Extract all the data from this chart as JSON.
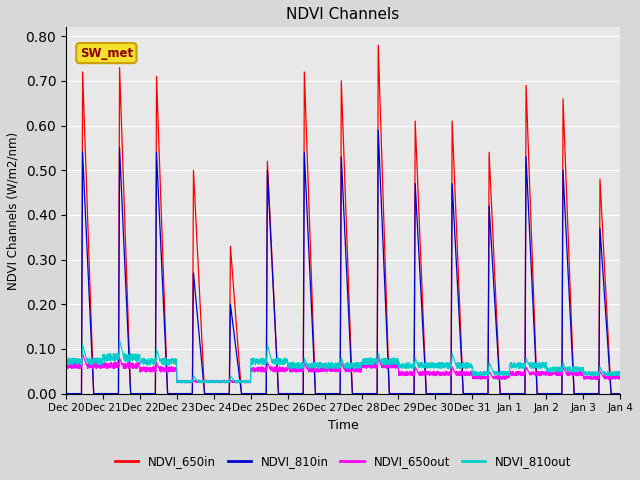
{
  "title": "NDVI Channels",
  "xlabel": "Time",
  "ylabel": "NDVI Channels (W/m2/nm)",
  "ylim": [
    0.0,
    0.82
  ],
  "yticks": [
    0.0,
    0.1,
    0.2,
    0.3,
    0.4,
    0.5,
    0.6,
    0.7,
    0.8
  ],
  "fig_width": 6.4,
  "fig_height": 4.8,
  "background_color": "#d8d8d8",
  "plot_bg_color": "#e8e8e8",
  "annotation_text": "SW_met",
  "annotation_bg": "#f5e030",
  "annotation_border": "#c8a000",
  "annotation_text_color": "#8b0000",
  "colors": {
    "NDVI_650in": "#ff0000",
    "NDVI_810in": "#0000cc",
    "NDVI_650out": "#ff00ff",
    "NDVI_810out": "#00cccc"
  },
  "xtick_labels": [
    "Dec 20",
    "Dec 21",
    "Dec 22",
    "Dec 23",
    "Dec 24",
    "Dec 25",
    "Dec 26",
    "Dec 27",
    "Dec 28",
    "Dec 29",
    "Dec 30",
    "Dec 31",
    "Jan 1",
    "Jan 2",
    "Jan 3",
    "Jan 4"
  ],
  "num_days": 15,
  "peaks_650in": [
    0.72,
    0.73,
    0.71,
    0.5,
    0.33,
    0.52,
    0.72,
    0.7,
    0.78,
    0.61,
    0.61,
    0.54,
    0.69,
    0.66,
    0.48
  ],
  "peaks_810in": [
    0.54,
    0.55,
    0.54,
    0.27,
    0.2,
    0.5,
    0.54,
    0.53,
    0.59,
    0.47,
    0.47,
    0.42,
    0.53,
    0.5,
    0.37
  ],
  "peaks_650out": [
    0.09,
    0.08,
    0.07,
    0.03,
    0.03,
    0.07,
    0.07,
    0.07,
    0.08,
    0.06,
    0.06,
    0.05,
    0.06,
    0.06,
    0.05
  ],
  "peaks_810out": [
    0.11,
    0.12,
    0.1,
    0.04,
    0.04,
    0.11,
    0.08,
    0.08,
    0.09,
    0.08,
    0.09,
    0.07,
    0.08,
    0.07,
    0.06
  ],
  "base_650out": [
    0.07,
    0.07,
    0.06,
    0.03,
    0.03,
    0.06,
    0.06,
    0.06,
    0.07,
    0.05,
    0.05,
    0.04,
    0.05,
    0.05,
    0.04
  ],
  "base_810out": [
    0.08,
    0.09,
    0.08,
    0.03,
    0.03,
    0.08,
    0.07,
    0.07,
    0.08,
    0.07,
    0.07,
    0.05,
    0.07,
    0.06,
    0.05
  ]
}
